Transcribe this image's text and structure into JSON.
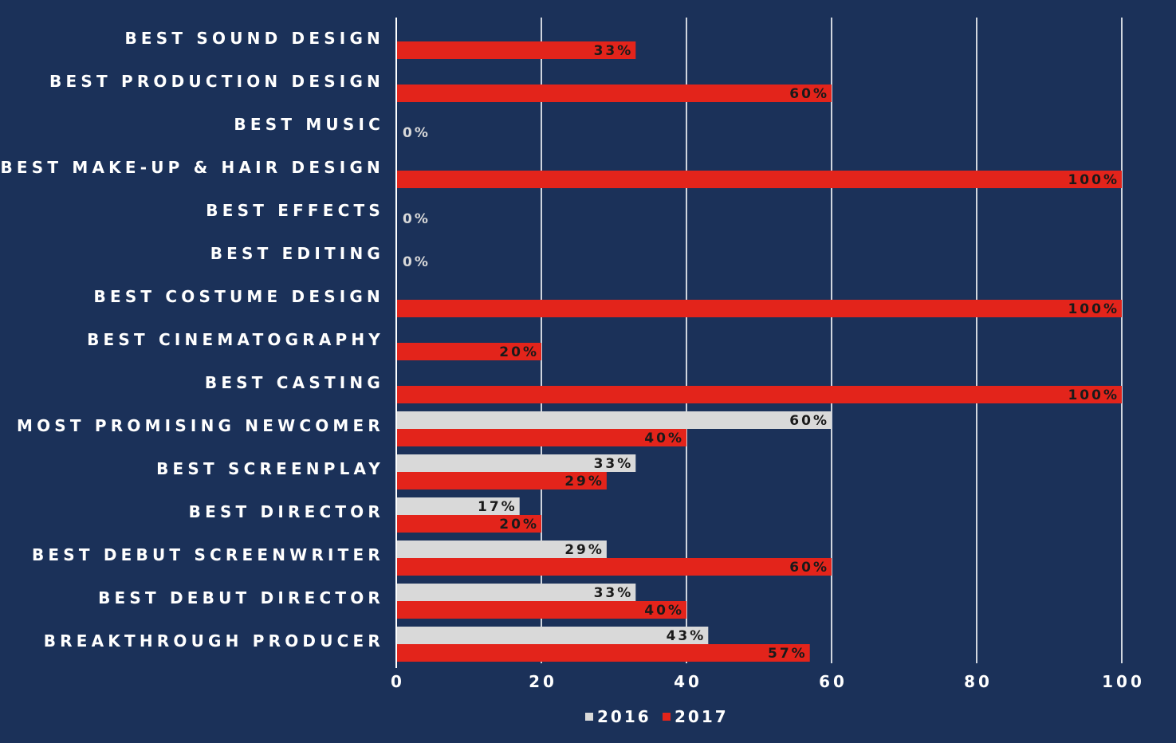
{
  "chart_data": {
    "type": "bar",
    "orientation": "horizontal",
    "categories": [
      "BEST SOUND DESIGN",
      "BEST PRODUCTION DESIGN",
      "BEST MUSIC",
      "BEST MAKE-UP & HAIR DESIGN",
      "BEST EFFECTS",
      "BEST EDITING",
      "BEST COSTUME DESIGN",
      "BEST CINEMATOGRAPHY",
      "BEST CASTING",
      "MOST PROMISING NEWCOMER",
      "BEST SCREENPLAY",
      "BEST DIRECTOR",
      "BEST DEBUT SCREENWRITER",
      "BEST DEBUT DIRECTOR",
      "BREAKTHROUGH PRODUCER"
    ],
    "series": [
      {
        "name": "2016",
        "color": "#d9d9d9",
        "values": [
          null,
          null,
          null,
          null,
          null,
          null,
          null,
          null,
          null,
          60,
          33,
          17,
          29,
          33,
          43
        ],
        "labels": [
          "",
          "",
          "",
          "",
          "",
          "",
          "",
          "",
          "",
          "60%",
          "33%",
          "17%",
          "29%",
          "33%",
          "43%"
        ]
      },
      {
        "name": "2017",
        "color": "#e3241b",
        "values": [
          33,
          60,
          0,
          100,
          0,
          0,
          100,
          20,
          100,
          40,
          29,
          20,
          60,
          40,
          57
        ],
        "labels": [
          "33%",
          "60%",
          "0%",
          "100%",
          "0%",
          "0%",
          "100%",
          "20%",
          "100%",
          "40%",
          "29%",
          "20%",
          "60%",
          "40%",
          "57%"
        ]
      }
    ],
    "xlim": [
      0,
      100
    ],
    "xticks": [
      "0",
      "20",
      "40",
      "60",
      "80",
      "100"
    ],
    "xlabel": "",
    "ylabel": "",
    "title": "",
    "grid": true,
    "legend_position": "bottom-center",
    "colors": {
      "background": "#1b3159",
      "grid": "#ffffff",
      "text": "#ffffff",
      "value_text_on_bar": "#1a1a1a",
      "value_text_zero": "#d9d9d9"
    }
  }
}
